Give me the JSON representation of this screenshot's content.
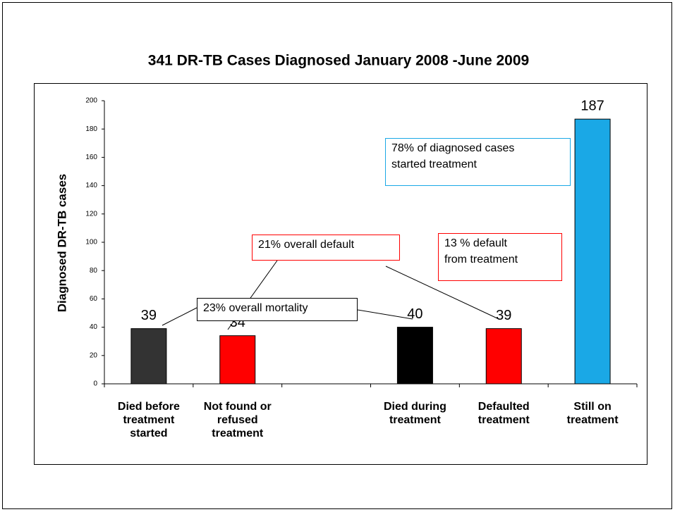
{
  "chart_data": {
    "type": "bar",
    "title": "341 DR-TB Cases Diagnosed January 2008 -June 2009",
    "y_label": "Diagnosed DR-TB cases",
    "categories": [
      "Died before\ntreatment\nstarted",
      "Not found or\nrefused\ntreatment",
      null,
      "Died during\ntreatment",
      "Defaulted\ntreatment",
      "Still on\ntreatment"
    ],
    "values": [
      39,
      34,
      null,
      40,
      39,
      187
    ],
    "colors": [
      "#333333",
      "#ff0000",
      null,
      "#000000",
      "#ff0000",
      "#1aa8e6"
    ],
    "ylim": [
      0,
      200
    ],
    "yticks": [
      0,
      20,
      40,
      60,
      80,
      100,
      120,
      140,
      160,
      180,
      200
    ],
    "annotations": [
      {
        "text": "23% overall mortality",
        "border_color": "#000000"
      },
      {
        "text": "21% overall default",
        "border_color": "#ff0000"
      },
      {
        "text": "13 % default\nfrom treatment",
        "border_color": "#ff0000"
      },
      {
        "text": "78% of diagnosed cases\nstarted treatment",
        "border_color": "#1aa8e6"
      }
    ]
  }
}
